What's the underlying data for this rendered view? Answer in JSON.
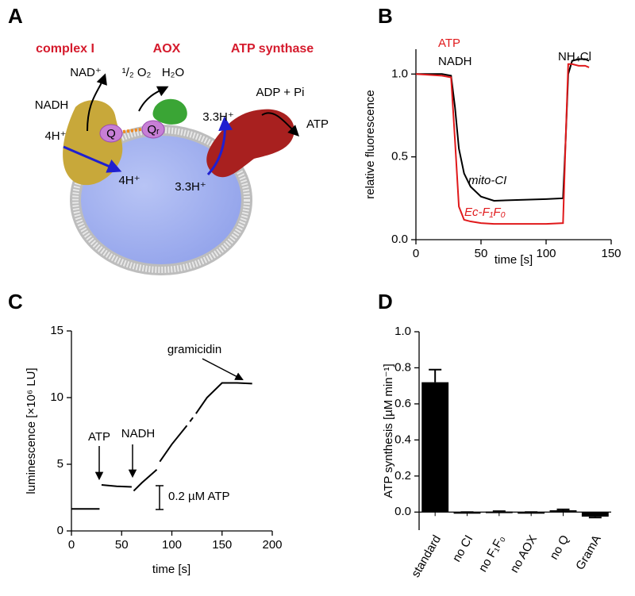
{
  "diagram": {
    "panel": "A",
    "complexes": [
      "complex I",
      "AOX",
      "ATP synthase"
    ],
    "texts": [
      "NAD⁺",
      "NADH",
      "¹/₂ O₂",
      "H₂O",
      "ADP + Pi",
      "ATP",
      "4H⁺",
      "4H⁺",
      "3.3H⁺",
      "3.3H⁺",
      "Q",
      "Qᵣ"
    ]
  },
  "chart_data": [
    {
      "type": "line",
      "panel": "B",
      "xlabel": "time [s]",
      "ylabel": "relative fluorescence",
      "x": [
        0,
        20,
        27,
        30,
        33,
        37,
        42,
        50,
        60,
        80,
        100,
        113,
        115,
        117,
        120,
        125,
        130,
        133
      ],
      "series": [
        {
          "name": "NADH",
          "color": "#000000",
          "values": [
            1.0,
            1.0,
            0.99,
            0.8,
            0.55,
            0.4,
            0.32,
            0.26,
            0.235,
            0.24,
            0.245,
            0.25,
            0.6,
            1.0,
            1.08,
            1.09,
            1.09,
            1.08
          ]
        },
        {
          "name": "ATP",
          "color": "#e0191b",
          "values": [
            1.0,
            0.99,
            0.98,
            0.6,
            0.2,
            0.12,
            0.11,
            0.1,
            0.095,
            0.095,
            0.095,
            0.1,
            0.6,
            1.06,
            1.06,
            1.05,
            1.05,
            1.04
          ]
        }
      ],
      "annotations": [
        {
          "text": "NH₄Cl",
          "color": "#000000"
        },
        {
          "text": "mito-CI",
          "color": "#000000"
        },
        {
          "text": "Ec-F₁F₀",
          "color": "#e0191b"
        }
      ],
      "xlim": [
        0,
        150
      ],
      "xticks": [
        0,
        50,
        100,
        150
      ],
      "ylim": [
        0,
        1.15
      ],
      "yticks": [
        {
          "value": 0,
          "label": "0.0"
        },
        0.5,
        {
          "value": 1,
          "label": "1.0"
        }
      ]
    },
    {
      "type": "line",
      "panel": "C",
      "xlabel": "time [s]",
      "ylabel": "luminescence [×10⁶ LU]",
      "color": "#000000",
      "x": [
        0,
        28,
        29,
        30,
        45,
        60,
        61,
        62,
        70,
        85,
        86,
        88,
        100,
        115,
        116,
        118,
        121,
        122,
        124,
        135,
        150,
        165,
        180
      ],
      "values": [
        1.65,
        1.65,
        null,
        3.45,
        3.35,
        3.3,
        null,
        3.0,
        3.6,
        4.6,
        null,
        5.2,
        6.5,
        7.9,
        null,
        8.2,
        8.5,
        null,
        8.8,
        10.0,
        11.1,
        11.1,
        11.05
      ],
      "annotations": [
        {
          "text": "ATP",
          "color": "#000000"
        },
        {
          "text": "NADH",
          "color": "#000000"
        },
        {
          "text": "gramicidin",
          "color": "#000000"
        },
        {
          "text": "0.2 µM ATP",
          "color": "#000000"
        }
      ],
      "xlim": [
        0,
        200
      ],
      "xticks": [
        0,
        50,
        100,
        150,
        200
      ],
      "ylim": [
        0,
        15
      ],
      "yticks": [
        0,
        5,
        10,
        15
      ]
    },
    {
      "type": "bar",
      "panel": "D",
      "ylabel": "ATP synthesis  [µM min⁻¹]",
      "color": "#000000",
      "categories": [
        "standard",
        "no CI",
        "no F₁F₀",
        "no AOX",
        "no Q",
        "GramA"
      ],
      "values": [
        0.72,
        0,
        0.003,
        0,
        0.01,
        -0.025
      ],
      "errors": [
        0.07,
        0,
        0.002,
        0,
        0.005,
        0.005
      ],
      "ylim": [
        -0.1,
        1.0
      ],
      "yticks": [
        {
          "value": 0,
          "label": "0.0"
        },
        0.2,
        0.4,
        0.6,
        0.8,
        {
          "value": 1,
          "label": "1.0"
        }
      ]
    }
  ]
}
